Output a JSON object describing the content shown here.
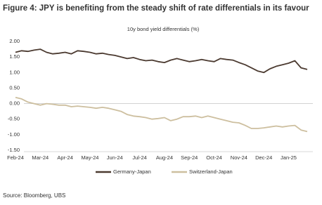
{
  "chart_data": {
    "type": "line",
    "title": "Figure 4: JPY is benefiting from the steady shift of rate differentials in its favour",
    "subtitle": "10y bond yield differentials (%)",
    "source": "Source: Bloomberg, UBS",
    "categories": [
      "Feb-24",
      null,
      null,
      null,
      "Mar-24",
      null,
      null,
      null,
      "Apr-24",
      null,
      null,
      null,
      "May-24",
      null,
      null,
      null,
      "Jun-24",
      null,
      null,
      null,
      "Jul-24",
      null,
      null,
      null,
      "Aug-24",
      null,
      null,
      null,
      "Sep-24",
      null,
      null,
      null,
      "Oct-24",
      null,
      null,
      null,
      "Nov-24",
      null,
      null,
      null,
      "Dec-24",
      null,
      null,
      null,
      "Jan-25",
      null,
      null,
      null
    ],
    "series": [
      {
        "name": "Germany-Japan",
        "color": "#4b3a30",
        "values": [
          1.65,
          1.7,
          1.68,
          1.72,
          1.75,
          1.65,
          1.6,
          1.62,
          1.65,
          1.6,
          1.7,
          1.68,
          1.65,
          1.6,
          1.62,
          1.58,
          1.55,
          1.5,
          1.45,
          1.48,
          1.42,
          1.38,
          1.4,
          1.35,
          1.32,
          1.4,
          1.45,
          1.4,
          1.35,
          1.38,
          1.42,
          1.38,
          1.35,
          1.45,
          1.42,
          1.4,
          1.32,
          1.25,
          1.15,
          1.05,
          1.0,
          1.12,
          1.2,
          1.25,
          1.3,
          1.38,
          1.15,
          1.1
        ]
      },
      {
        "name": "Switzerland-Japan",
        "color": "#cdbf9f",
        "values": [
          0.2,
          0.15,
          0.05,
          0.0,
          -0.05,
          0.0,
          -0.02,
          -0.05,
          -0.05,
          -0.1,
          -0.08,
          -0.1,
          -0.12,
          -0.15,
          -0.12,
          -0.15,
          -0.2,
          -0.25,
          -0.35,
          -0.4,
          -0.42,
          -0.45,
          -0.5,
          -0.48,
          -0.45,
          -0.55,
          -0.5,
          -0.42,
          -0.42,
          -0.4,
          -0.45,
          -0.4,
          -0.45,
          -0.5,
          -0.55,
          -0.6,
          -0.62,
          -0.7,
          -0.8,
          -0.8,
          -0.78,
          -0.75,
          -0.72,
          -0.75,
          -0.72,
          -0.7,
          -0.85,
          -0.9
        ]
      }
    ],
    "ylim": [
      -1.5,
      2.0
    ],
    "yticks": [
      {
        "value": 2.0,
        "label": "2.00"
      },
      {
        "value": 1.5,
        "label": "1.50"
      },
      {
        "value": 1.0,
        "label": "1.00"
      },
      {
        "value": 0.5,
        "label": "0.50"
      },
      {
        "value": 0,
        "label": "0.00"
      },
      {
        "value": -0.5,
        "label": "-0.50"
      },
      {
        "value": -1.0,
        "label": "-1.00"
      },
      {
        "value": -1.5,
        "label": "-1.50"
      }
    ],
    "legend": "bottom"
  }
}
